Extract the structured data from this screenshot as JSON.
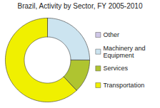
{
  "chart_data": {
    "type": "pie",
    "title": "Brazil, Activity by Sector, FY 2005-2010",
    "categories": [
      "Other",
      "Machinery and\nEquipment",
      "Services",
      "Transportation"
    ],
    "values": [
      2406388,
      457837552,
      236178827,
      1137847672
    ],
    "colors": [
      "#d0c8e8",
      "#cce4f0",
      "#afc430",
      "#f0f000"
    ],
    "legend": "right"
  }
}
